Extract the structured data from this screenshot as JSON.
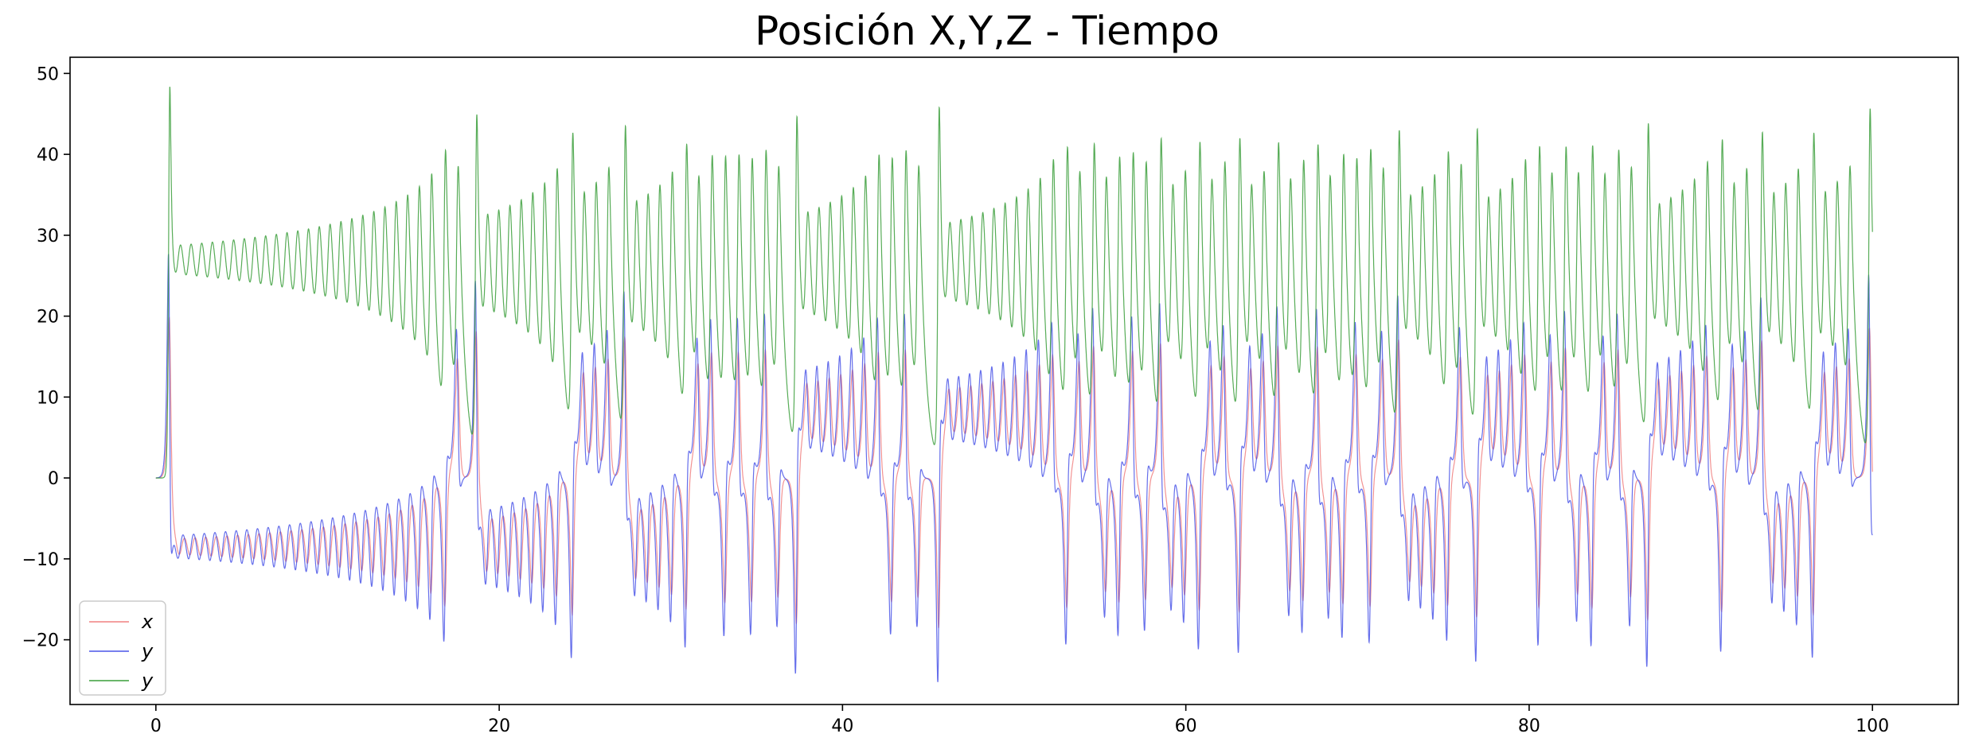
{
  "chart_data": {
    "type": "line",
    "title": "Posición X,Y,Z - Tiempo",
    "xlabel": "",
    "ylabel": "",
    "xlim": [
      -5,
      105
    ],
    "ylim": [
      -28,
      52
    ],
    "xticks": [
      0,
      20,
      40,
      60,
      80,
      100
    ],
    "yticks": [
      -20,
      -10,
      0,
      10,
      20,
      30,
      40,
      50
    ],
    "x_range": [
      0,
      100
    ],
    "grid": false,
    "legend_position": "lower-left",
    "series": [
      {
        "name": "x",
        "color": "#f08080",
        "description_values": {
          "start": 0,
          "first_peak": 20,
          "oscillation_low": -16,
          "oscillation_high": 18,
          "min": -24,
          "max": 20
        }
      },
      {
        "name": "y",
        "color": "#4a55e8",
        "description_values": {
          "start": 0,
          "first_peak": 27.5,
          "oscillation_low": -22,
          "oscillation_high": 24,
          "min": -25.5,
          "max": 27.5
        }
      },
      {
        "name": "y",
        "color": "#3a9e3a",
        "description_values": {
          "start": 0,
          "first_peak": 48.5,
          "oscillation_low": 3.5,
          "oscillation_high": 46,
          "min": 3.5,
          "max": 48.5
        }
      }
    ],
    "regime_switch_times": [
      0.6,
      17.6,
      18.6,
      24.0,
      25.8,
      28.2,
      30.5,
      32.5,
      35.0,
      37.2,
      40.2,
      43.0,
      45.5,
      47.0,
      50.0,
      58.3,
      63.7,
      69.2,
      72.0,
      75.8,
      78.3,
      80.8,
      84.3,
      86.3,
      88.5,
      92.5,
      95.4,
      97.8,
      100
    ]
  }
}
